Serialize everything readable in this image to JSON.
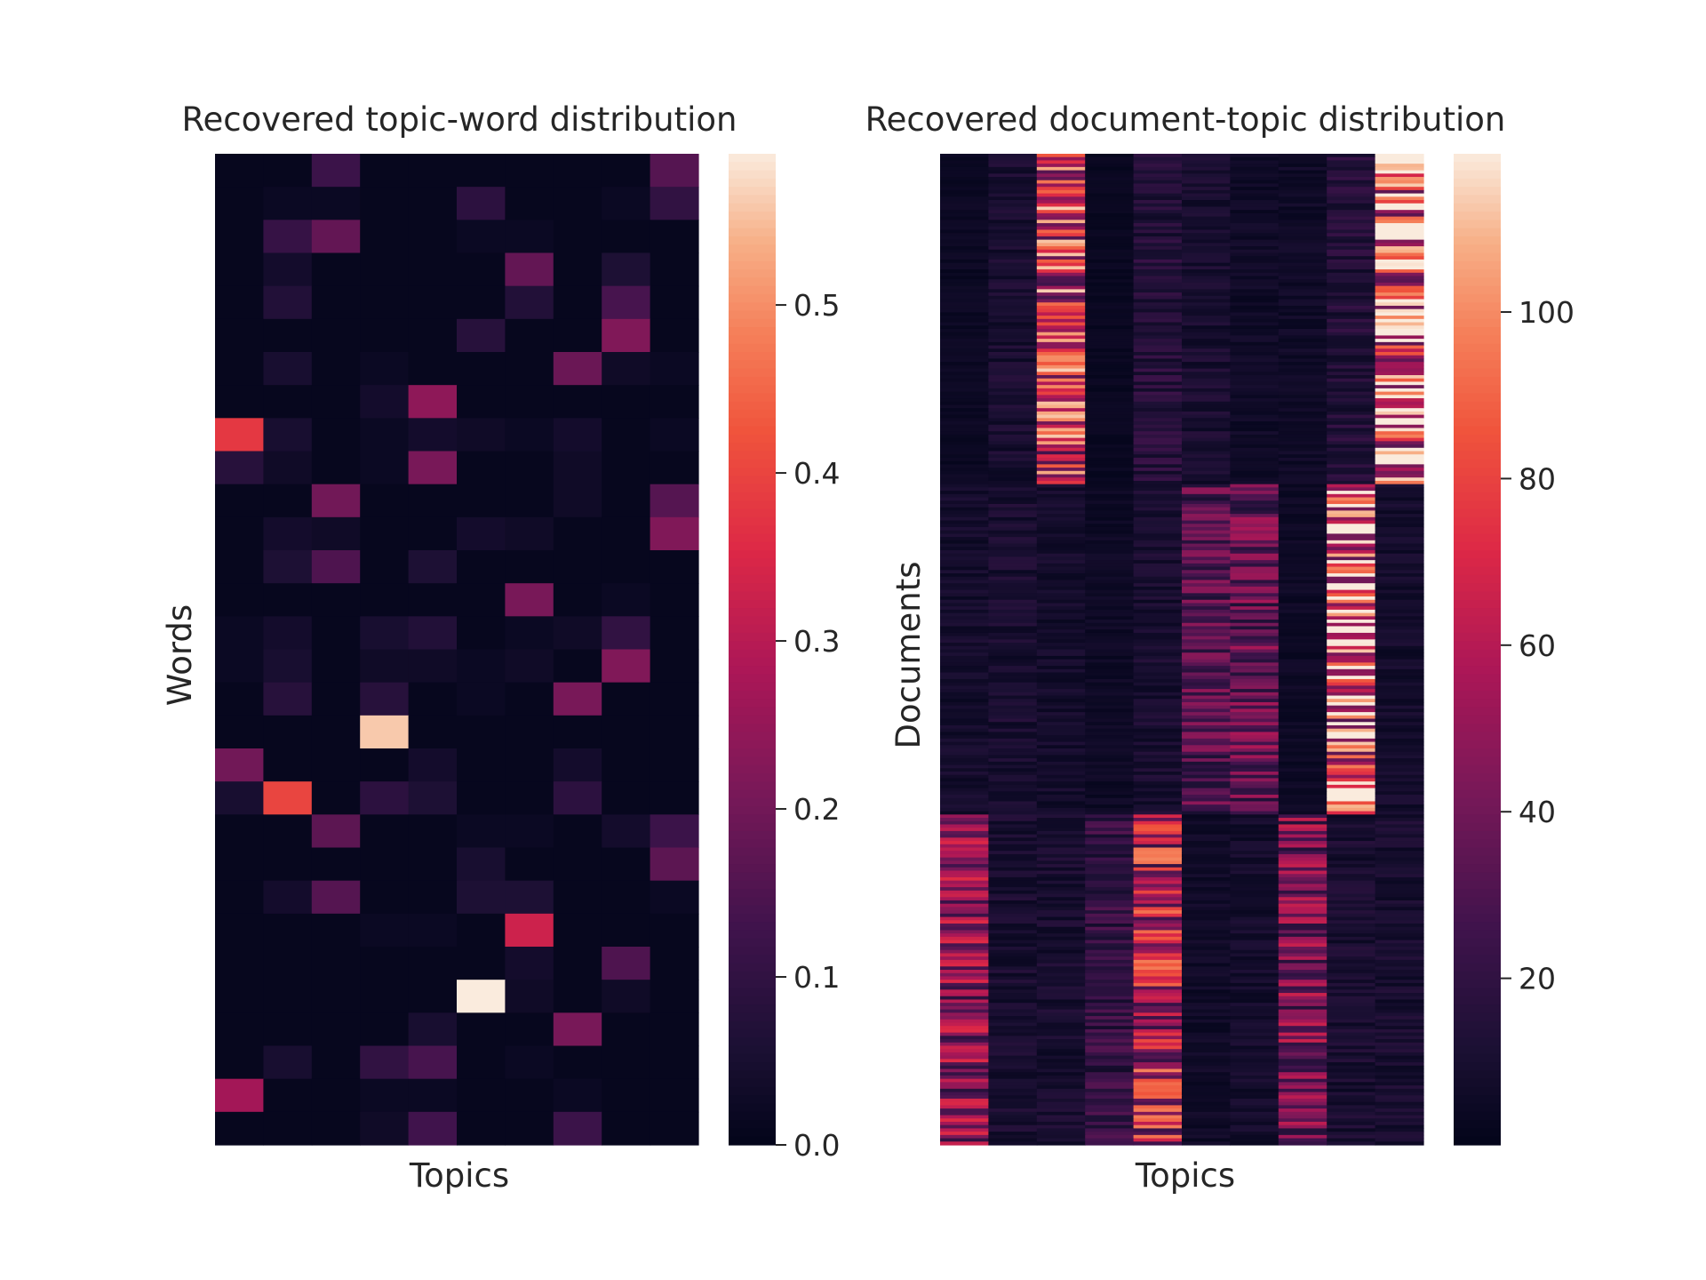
{
  "chart_data": [
    {
      "type": "heatmap",
      "title": "Recovered topic-word distribution",
      "xlabel": "Topics",
      "ylabel": "Words",
      "n_cols": 10,
      "n_rows": 30,
      "colorbar": {
        "min": 0.0,
        "max": 0.59,
        "ticks": [
          0.0,
          0.1,
          0.2,
          0.3,
          0.4,
          0.5
        ],
        "tick_labels": [
          "0.0",
          "0.1",
          "0.2",
          "0.3",
          "0.4",
          "0.5"
        ]
      },
      "colormap": "rocket",
      "values": [
        [
          0.01,
          0.01,
          0.12,
          0.01,
          0.01,
          0.01,
          0.01,
          0.01,
          0.01,
          0.16
        ],
        [
          0.01,
          0.02,
          0.02,
          0.01,
          0.01,
          0.09,
          0.01,
          0.01,
          0.02,
          0.1
        ],
        [
          0.01,
          0.11,
          0.18,
          0.01,
          0.01,
          0.02,
          0.02,
          0.01,
          0.01,
          0.01
        ],
        [
          0.01,
          0.04,
          0.01,
          0.01,
          0.01,
          0.01,
          0.18,
          0.01,
          0.06,
          0.01
        ],
        [
          0.01,
          0.07,
          0.01,
          0.01,
          0.01,
          0.01,
          0.07,
          0.01,
          0.14,
          0.01
        ],
        [
          0.01,
          0.01,
          0.01,
          0.01,
          0.01,
          0.08,
          0.01,
          0.01,
          0.22,
          0.01
        ],
        [
          0.01,
          0.05,
          0.01,
          0.02,
          0.01,
          0.01,
          0.01,
          0.19,
          0.03,
          0.02
        ],
        [
          0.01,
          0.01,
          0.01,
          0.04,
          0.24,
          0.01,
          0.01,
          0.01,
          0.01,
          0.01
        ],
        [
          0.38,
          0.05,
          0.01,
          0.02,
          0.04,
          0.03,
          0.02,
          0.04,
          0.01,
          0.02
        ],
        [
          0.08,
          0.03,
          0.01,
          0.02,
          0.21,
          0.01,
          0.01,
          0.03,
          0.01,
          0.01
        ],
        [
          0.01,
          0.01,
          0.2,
          0.01,
          0.01,
          0.01,
          0.01,
          0.03,
          0.01,
          0.16
        ],
        [
          0.01,
          0.04,
          0.03,
          0.01,
          0.01,
          0.04,
          0.03,
          0.01,
          0.01,
          0.22
        ],
        [
          0.01,
          0.06,
          0.15,
          0.01,
          0.06,
          0.01,
          0.01,
          0.01,
          0.01,
          0.01
        ],
        [
          0.01,
          0.01,
          0.01,
          0.01,
          0.01,
          0.01,
          0.21,
          0.01,
          0.02,
          0.01
        ],
        [
          0.02,
          0.04,
          0.01,
          0.05,
          0.07,
          0.01,
          0.02,
          0.03,
          0.1,
          0.01
        ],
        [
          0.02,
          0.05,
          0.01,
          0.03,
          0.03,
          0.02,
          0.03,
          0.01,
          0.22,
          0.01
        ],
        [
          0.01,
          0.08,
          0.01,
          0.08,
          0.01,
          0.02,
          0.01,
          0.21,
          0.01,
          0.01
        ],
        [
          0.01,
          0.01,
          0.01,
          0.56,
          0.01,
          0.01,
          0.01,
          0.01,
          0.01,
          0.01
        ],
        [
          0.2,
          0.01,
          0.01,
          0.01,
          0.04,
          0.01,
          0.01,
          0.04,
          0.01,
          0.01
        ],
        [
          0.05,
          0.4,
          0.01,
          0.09,
          0.06,
          0.01,
          0.01,
          0.09,
          0.01,
          0.01
        ],
        [
          0.01,
          0.01,
          0.17,
          0.01,
          0.01,
          0.02,
          0.02,
          0.01,
          0.04,
          0.12
        ],
        [
          0.01,
          0.01,
          0.01,
          0.01,
          0.01,
          0.05,
          0.01,
          0.01,
          0.01,
          0.17
        ],
        [
          0.01,
          0.04,
          0.16,
          0.01,
          0.01,
          0.06,
          0.06,
          0.01,
          0.01,
          0.02
        ],
        [
          0.01,
          0.01,
          0.01,
          0.02,
          0.02,
          0.01,
          0.33,
          0.01,
          0.01,
          0.01
        ],
        [
          0.01,
          0.01,
          0.01,
          0.01,
          0.01,
          0.01,
          0.04,
          0.01,
          0.15,
          0.01
        ],
        [
          0.01,
          0.01,
          0.01,
          0.01,
          0.01,
          0.59,
          0.03,
          0.01,
          0.03,
          0.01
        ],
        [
          0.01,
          0.01,
          0.01,
          0.01,
          0.05,
          0.01,
          0.01,
          0.21,
          0.01,
          0.01
        ],
        [
          0.01,
          0.05,
          0.01,
          0.1,
          0.14,
          0.01,
          0.02,
          0.01,
          0.01,
          0.01
        ],
        [
          0.27,
          0.01,
          0.01,
          0.02,
          0.02,
          0.01,
          0.01,
          0.02,
          0.01,
          0.01
        ],
        [
          0.01,
          0.01,
          0.01,
          0.03,
          0.13,
          0.01,
          0.01,
          0.12,
          0.01,
          0.01
        ]
      ]
    },
    {
      "type": "heatmap",
      "title": "Recovered document-topic distribution",
      "xlabel": "Topics",
      "ylabel": "Documents",
      "n_cols": 10,
      "n_rows": 300,
      "colorbar": {
        "min": 0,
        "max": 119,
        "ticks": [
          20,
          40,
          60,
          80,
          100
        ],
        "tick_labels": [
          "20",
          "40",
          "60",
          "80",
          "100"
        ]
      },
      "colormap": "rocket",
      "blocks": [
        {
          "rows": [
            0,
            100
          ],
          "col_means": [
            4,
            10,
            70,
            3,
            15,
            10,
            6,
            6,
            14,
            90
          ]
        },
        {
          "rows": [
            100,
            200
          ],
          "col_means": [
            8,
            10,
            8,
            5,
            10,
            30,
            35,
            5,
            90,
            8
          ]
        },
        {
          "rows": [
            200,
            300
          ],
          "col_means": [
            45,
            10,
            10,
            20,
            60,
            6,
            8,
            40,
            10,
            10
          ]
        }
      ]
    }
  ]
}
